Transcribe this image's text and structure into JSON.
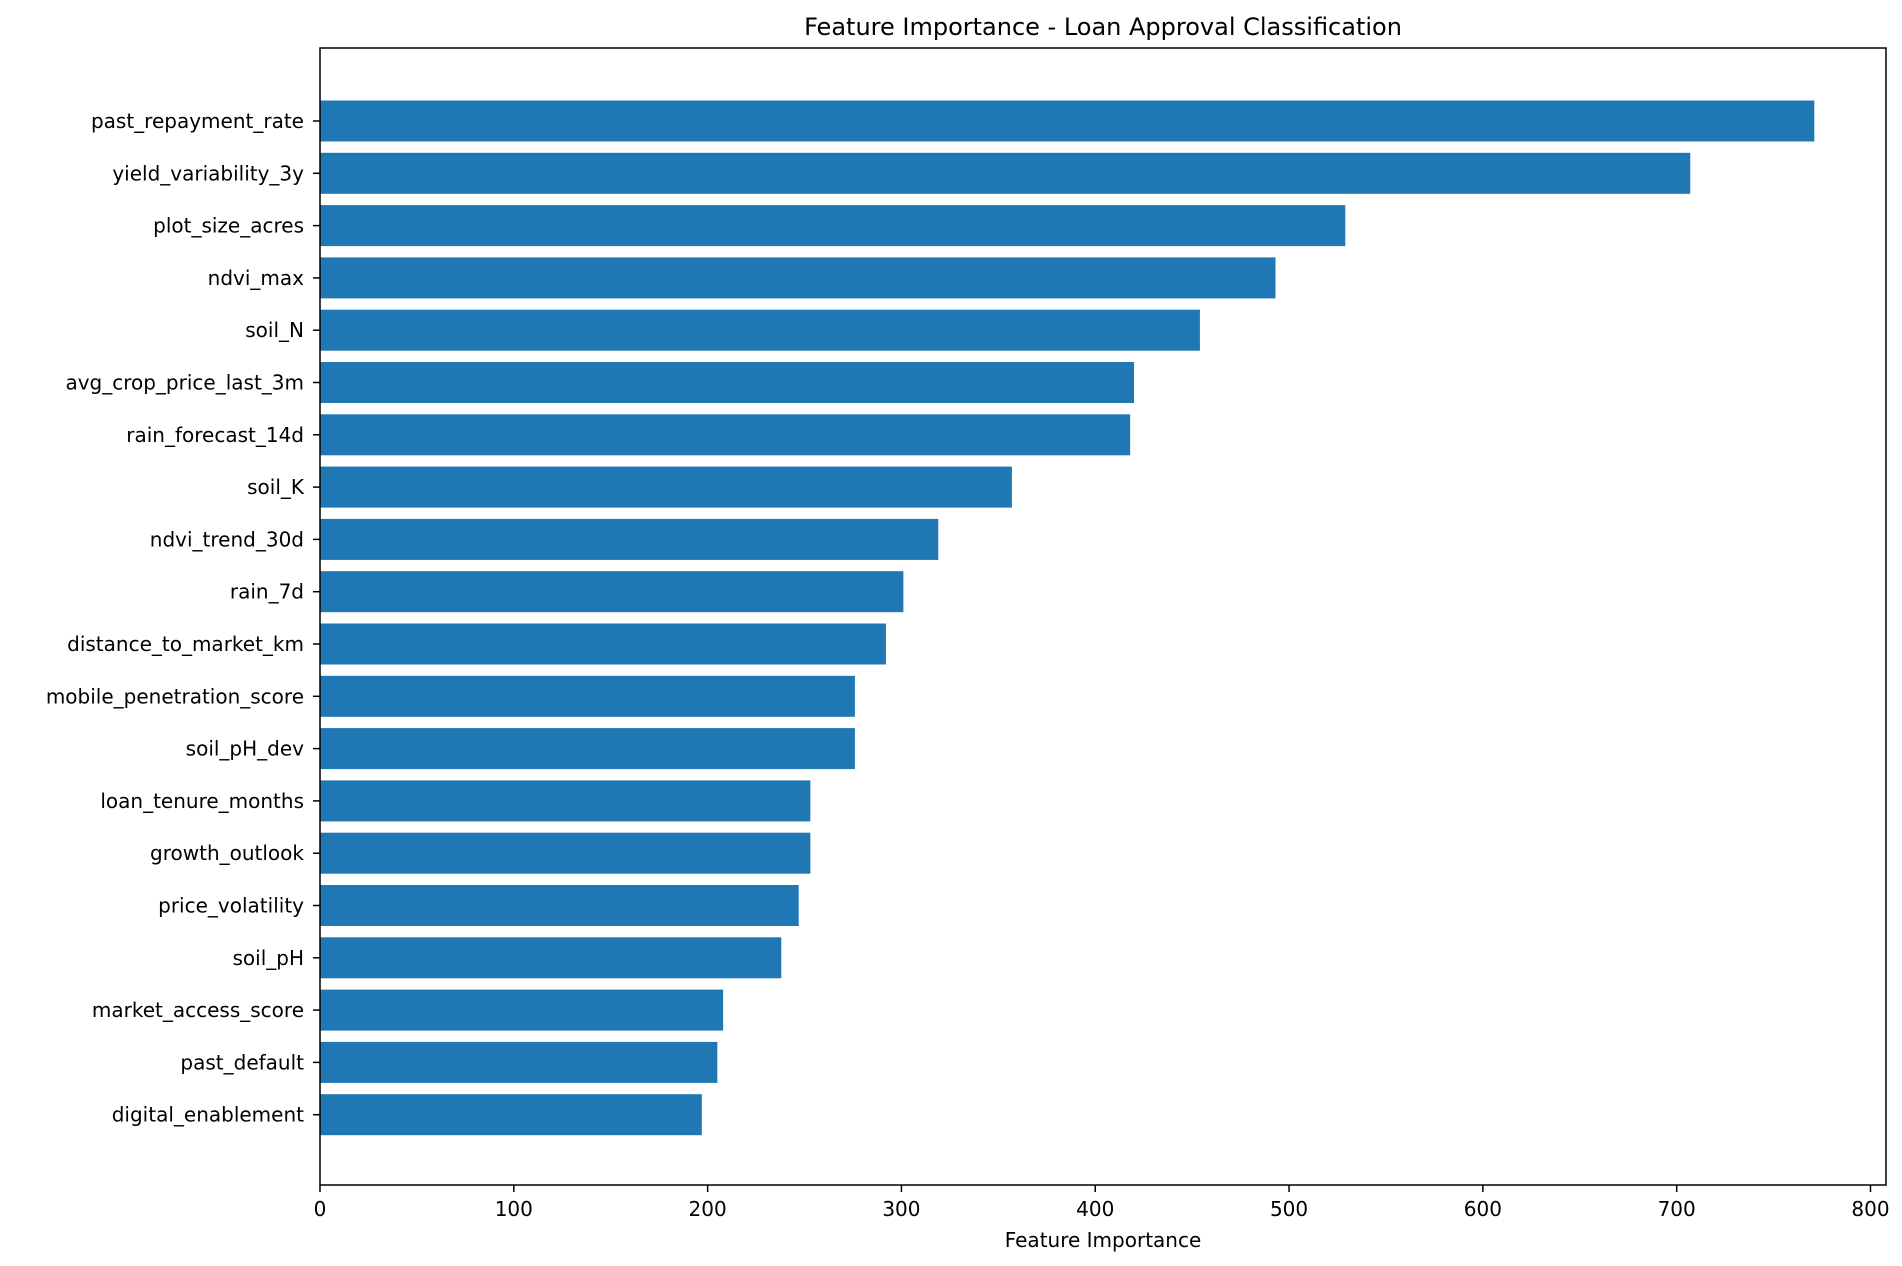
{
  "chart_data": {
    "type": "bar",
    "orientation": "horizontal",
    "title": "Feature Importance - Loan Approval Classification",
    "xlabel": "Feature Importance",
    "ylabel": "",
    "xlim": [
      0,
      808
    ],
    "xticks": [
      0,
      100,
      200,
      300,
      400,
      500,
      600,
      700,
      800
    ],
    "grid": false,
    "bar_color": "#1f77b4",
    "categories": [
      "past_repayment_rate",
      "yield_variability_3y",
      "plot_size_acres",
      "ndvi_max",
      "soil_N",
      "avg_crop_price_last_3m",
      "rain_forecast_14d",
      "soil_K",
      "ndvi_trend_30d",
      "rain_7d",
      "distance_to_market_km",
      "mobile_penetration_score",
      "soil_pH_dev",
      "loan_tenure_months",
      "growth_outlook",
      "price_volatility",
      "soil_pH",
      "market_access_score",
      "past_default",
      "digital_enablement"
    ],
    "values": [
      771,
      707,
      529,
      493,
      454,
      420,
      418,
      357,
      319,
      301,
      292,
      276,
      276,
      253,
      253,
      247,
      238,
      208,
      205,
      197
    ]
  }
}
